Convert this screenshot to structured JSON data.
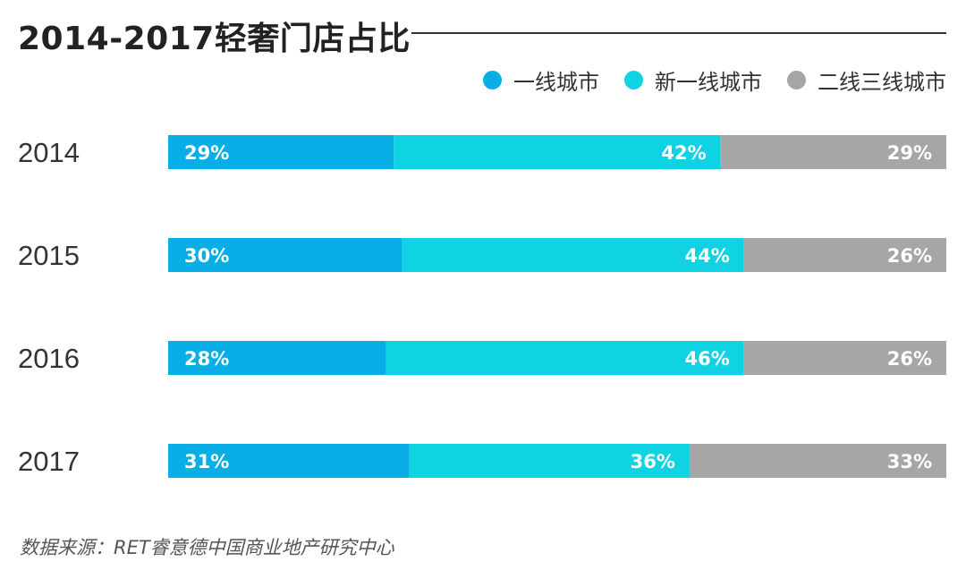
{
  "chart_data": {
    "type": "bar",
    "orientation": "horizontal",
    "stacked": true,
    "title": "2014-2017轻奢门店占比",
    "categories": [
      "2014",
      "2015",
      "2016",
      "2017"
    ],
    "series": [
      {
        "name": "一线城市",
        "color": "#0aaee6",
        "values": [
          29,
          30,
          28,
          31
        ],
        "labels": [
          "29%",
          "30%",
          "28%",
          "31%"
        ]
      },
      {
        "name": "新一线城市",
        "color": "#0fd2e3",
        "values": [
          42,
          44,
          46,
          36
        ],
        "labels": [
          "42%",
          "44%",
          "46%",
          "36%"
        ]
      },
      {
        "name": "二线三线城市",
        "color": "#a6a6a6",
        "values": [
          29,
          26,
          26,
          33
        ],
        "labels": [
          "29%",
          "26%",
          "26%",
          "33%"
        ]
      }
    ],
    "unit": "%",
    "legend_position": "top-right",
    "grid": false
  },
  "source": "数据来源：RET睿意德中国商业地产研究中心"
}
